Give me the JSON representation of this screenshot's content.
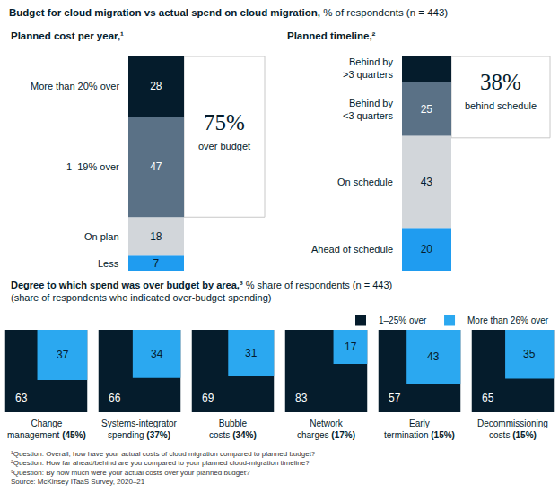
{
  "title": "Budget for cloud migration vs actual spend on cloud migration,",
  "subtitle": "% of respondents (n = 443)",
  "footnotes": [
    "¹Question: Overall, how have your actual costs of cloud migration compared to planned budget?",
    "²Question: How far ahead/behind are you compared to your planned cloud-migration timeline?",
    "³Question: By how much were your actual costs over your planned budget?"
  ],
  "source": "Source: McKinsey ITaaS Survey, 2020–21",
  "chart_data": [
    {
      "type": "bar",
      "stacked": true,
      "data_labels": true,
      "tick_labels": false,
      "title": "Planned cost per year,¹",
      "categories": [
        "More than 20% over",
        "1–19% over",
        "On plan",
        "Less"
      ],
      "values": [
        28,
        47,
        18,
        7
      ],
      "colors": [
        "#051c2c",
        "#5a7186",
        "#d2d6da",
        "#1f9cf0"
      ],
      "ylim": [
        0,
        100
      ],
      "callout": {
        "value": 75,
        "label": "75%",
        "text": "over budget"
      }
    },
    {
      "type": "bar",
      "stacked": true,
      "data_labels": true,
      "tick_labels": false,
      "title": "Planned timeline,²",
      "categories": [
        "Behind by >3 quarters",
        "Behind by <3 quarters",
        "On schedule",
        "Ahead of schedule"
      ],
      "values": [
        13,
        25,
        43,
        20
      ],
      "colors": [
        "#051c2c",
        "#5a7186",
        "#d2d6da",
        "#1f9cf0"
      ],
      "ylim": [
        0,
        100
      ],
      "callout": {
        "value": 38,
        "label": "38%",
        "text": "behind schedule"
      }
    },
    {
      "type": "square",
      "data_labels": true,
      "tick_labels": false,
      "legend": "top right",
      "title": "Degree to which spend was over budget by area,³",
      "subtitle": [
        "% share of respondents (n = 443)",
        "(share of respondents who indicated over-budget spending)"
      ],
      "categories": [
        "Change management",
        "Systems-integrator spending",
        "Bubble costs",
        "Network charges",
        "Early termination",
        "Decommissioning costs"
      ],
      "share_labels": [
        "(45%)",
        "(37%)",
        "(34%)",
        "(17%)",
        "(15%)",
        "(15%)"
      ],
      "series": [
        {
          "name": "1–25% over",
          "color": "#051c2c",
          "values": [
            63,
            66,
            69,
            83,
            57,
            65
          ]
        },
        {
          "name": "More than 26% over",
          "color": "#2ba8f0",
          "values": [
            37,
            34,
            31,
            17,
            43,
            35
          ]
        }
      ],
      "xlim": [
        0,
        100
      ],
      "ylim": [
        0,
        100
      ]
    }
  ]
}
